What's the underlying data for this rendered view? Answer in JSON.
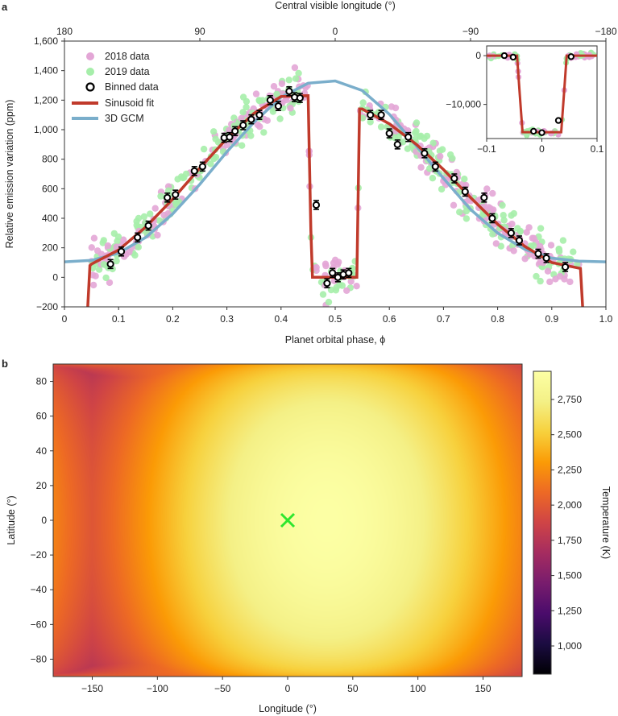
{
  "chart_data": [
    {
      "panel": "a",
      "type": "scatter",
      "xlabel": "Planet orbital phase, ϕ",
      "ylabel": "Relative emission variation (ppm)",
      "top_axis_label": "Central visible longitude (°)",
      "xlim": [
        0,
        1.0
      ],
      "ylim": [
        -200,
        1600
      ],
      "xticks": [
        "0",
        "0.1",
        "0.2",
        "0.3",
        "0.4",
        "0.5",
        "0.6",
        "0.7",
        "0.8",
        "0.9",
        "1.0"
      ],
      "yticks": [
        "−200",
        "0",
        "200",
        "400",
        "600",
        "800",
        "1,000",
        "1,200",
        "1,400",
        "1,600"
      ],
      "top_ticks": [
        "180",
        "90",
        "0",
        "−90",
        "−180"
      ],
      "legend": [
        "2018 data",
        "2019 data",
        "Binned data",
        "Sinusoid fit",
        "3D GCM"
      ],
      "legend_position": "top-left",
      "colors": {
        "data2018": "#e3a6d6",
        "data2019": "#a6eeaa",
        "binned": "#000000",
        "fit": "#c03a2b",
        "gcm": "#7aaecb"
      },
      "binned": {
        "x": [
          0.085,
          0.105,
          0.135,
          0.155,
          0.19,
          0.205,
          0.24,
          0.255,
          0.295,
          0.305,
          0.315,
          0.33,
          0.345,
          0.36,
          0.38,
          0.395,
          0.415,
          0.425,
          0.435,
          0.465,
          0.485,
          0.495,
          0.505,
          0.515,
          0.525,
          0.565,
          0.585,
          0.6,
          0.615,
          0.635,
          0.665,
          0.685,
          0.72,
          0.74,
          0.775,
          0.79,
          0.825,
          0.84,
          0.875,
          0.89,
          0.925
        ],
        "y": [
          90,
          175,
          270,
          350,
          540,
          560,
          720,
          750,
          945,
          950,
          990,
          1030,
          1070,
          1100,
          1200,
          1160,
          1260,
          1220,
          1215,
          490,
          -40,
          30,
          0,
          20,
          30,
          1100,
          1100,
          975,
          900,
          950,
          840,
          750,
          670,
          580,
          540,
          400,
          300,
          250,
          160,
          130,
          70
        ],
        "err": [
          30,
          30,
          30,
          30,
          30,
          30,
          30,
          30,
          30,
          30,
          30,
          30,
          30,
          30,
          30,
          30,
          30,
          30,
          30,
          30,
          30,
          30,
          30,
          30,
          30,
          30,
          30,
          30,
          30,
          30,
          30,
          30,
          30,
          30,
          30,
          30,
          30,
          30,
          30,
          30,
          30
        ]
      },
      "series": [
        {
          "name": "Sinusoid fit",
          "x": [
            0.043,
            0.047,
            0.05,
            0.1,
            0.15,
            0.2,
            0.25,
            0.3,
            0.35,
            0.4,
            0.45,
            0.455,
            0.458,
            0.46,
            0.54,
            0.545,
            0.55,
            0.6,
            0.65,
            0.7,
            0.75,
            0.8,
            0.85,
            0.9,
            0.953,
            0.957
          ],
          "y": [
            -200,
            80,
            90,
            185,
            340,
            530,
            740,
            940,
            1110,
            1225,
            1230,
            320,
            0,
            0,
            0,
            1140,
            1140,
            1040,
            900,
            730,
            540,
            360,
            210,
            100,
            60,
            -200
          ]
        },
        {
          "name": "3D GCM",
          "x": [
            0,
            0.05,
            0.1,
            0.15,
            0.2,
            0.25,
            0.3,
            0.35,
            0.4,
            0.45,
            0.5,
            0.55,
            0.6,
            0.65,
            0.7,
            0.75,
            0.8,
            0.85,
            0.9,
            0.95,
            1.0
          ],
          "y": [
            105,
            115,
            165,
            270,
            430,
            630,
            850,
            1050,
            1220,
            1315,
            1330,
            1265,
            1105,
            890,
            670,
            460,
            300,
            190,
            130,
            110,
            105
          ]
        }
      ],
      "inset": {
        "xlim": [
          -0.1,
          0.1
        ],
        "ylim": [
          -17000,
          2000
        ],
        "xticks": [
          "−0.1",
          "0",
          "0.1"
        ],
        "yticks": [
          "0",
          "−10,000"
        ],
        "binned": {
          "x": [
            -0.068,
            -0.052,
            -0.015,
            0.0,
            0.03,
            0.053
          ],
          "y": [
            0,
            -300,
            -15500,
            -15800,
            -13300,
            -200
          ]
        },
        "fit": {
          "x": [
            -0.1,
            -0.045,
            -0.04,
            -0.035,
            0.035,
            0.04,
            0.045,
            0.1
          ],
          "y": [
            0,
            0,
            -8000,
            -15700,
            -15700,
            -8000,
            0,
            0
          ]
        }
      }
    },
    {
      "panel": "b",
      "type": "heatmap",
      "xlabel": "Longitude (°)",
      "ylabel": "Latitude (°)",
      "xlim": [
        -180,
        180
      ],
      "ylim": [
        -90,
        90
      ],
      "xticks": [
        "−150",
        "−100",
        "−50",
        "0",
        "50",
        "100",
        "150"
      ],
      "yticks": [
        "−80",
        "−60",
        "−40",
        "−20",
        "0",
        "20",
        "40",
        "60",
        "80"
      ],
      "colorbar_label": "Temperature (K)",
      "colorbar_range": [
        800,
        2950
      ],
      "colorbar_ticks": [
        "1,000",
        "1,250",
        "1,500",
        "1,750",
        "2,000",
        "2,250",
        "2,500",
        "2,750"
      ],
      "colormap": "inferno",
      "hotspot_marker": {
        "longitude": 0,
        "latitude": 0,
        "color": "#2ee62e"
      },
      "model": {
        "t_min": 800,
        "t_max": 2950,
        "peak_longitude": 30
      }
    }
  ],
  "panel_labels": {
    "a": "a",
    "b": "b"
  }
}
